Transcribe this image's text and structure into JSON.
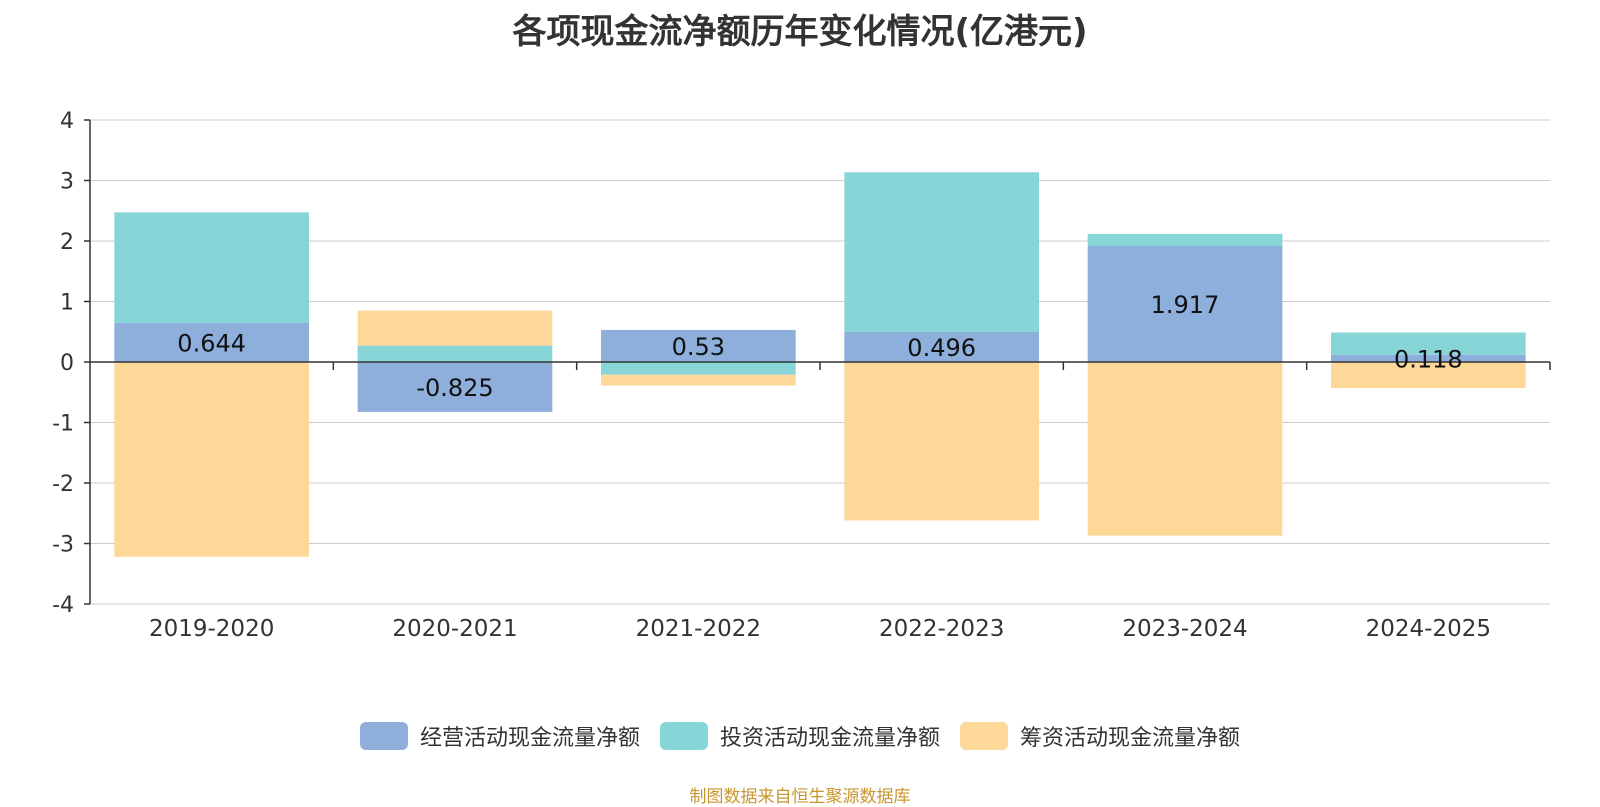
{
  "chart_data": {
    "type": "bar",
    "stacked": true,
    "title": "各项现金流净额历年变化情况(亿港元)",
    "xlabel": "",
    "ylabel": "",
    "categories": [
      "2019-2020",
      "2020-2021",
      "2021-2022",
      "2022-2023",
      "2023-2024",
      "2024-2025"
    ],
    "ylim": [
      -4,
      4
    ],
    "yticks": [
      -4,
      -3,
      -2,
      -1,
      0,
      1,
      2,
      3,
      4
    ],
    "grid": true,
    "legend_position": "bottom",
    "series": [
      {
        "name": "经营活动现金流量净额",
        "color": "#8eaedc",
        "values": [
          0.644,
          -0.825,
          0.53,
          0.496,
          1.917,
          0.118
        ],
        "data_labels": [
          "0.644",
          "-0.825",
          "0.53",
          "0.496",
          "1.917",
          "0.118"
        ]
      },
      {
        "name": "投资活动现金流量净额",
        "color": "#88d5d8",
        "values": [
          1.83,
          0.27,
          -0.21,
          2.64,
          0.2,
          0.37
        ]
      },
      {
        "name": "筹资活动现金流量净额",
        "color": "#fed899",
        "values": [
          -3.22,
          0.58,
          -0.18,
          -2.62,
          -2.87,
          -0.43
        ]
      }
    ]
  },
  "source_note": "制图数据来自恒生聚源数据库"
}
